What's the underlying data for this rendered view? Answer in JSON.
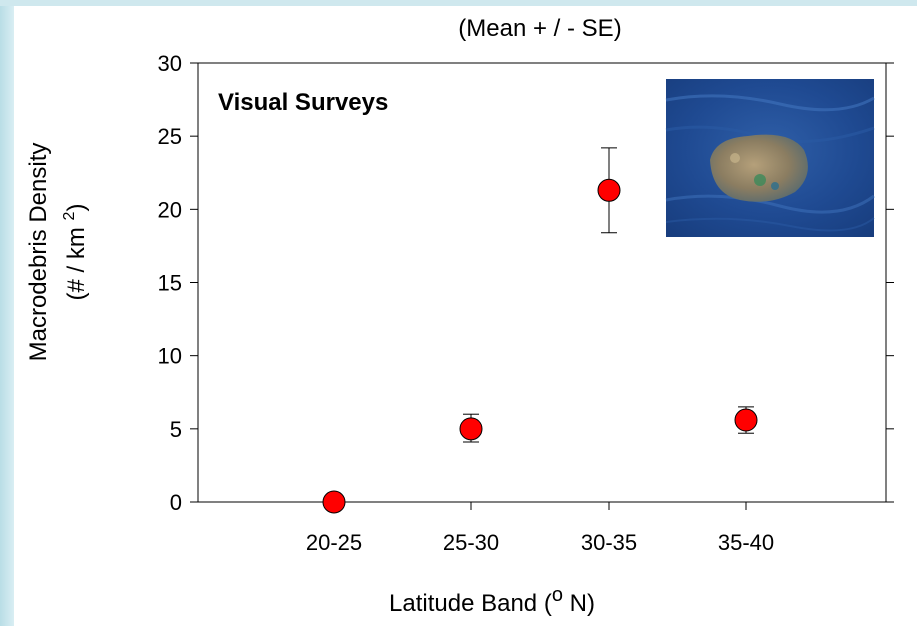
{
  "caption": "(Mean + / - SE)",
  "panel_label": "Visual Surveys",
  "photo_name": "floating-debris-photo",
  "colors": {
    "marker_fill": "#ff0000",
    "marker_stroke": "#000000",
    "axis": "#000000"
  },
  "chart_data": {
    "type": "scatter",
    "categories": [
      "20-25",
      "25-30",
      "30-35",
      "35-40"
    ],
    "values": [
      0,
      5.0,
      21.3,
      5.6
    ],
    "error_low": [
      0,
      4.1,
      18.4,
      4.7
    ],
    "error_high": [
      0,
      6.0,
      24.2,
      6.5
    ],
    "xlabel_main": "Latitude Band (",
    "xlabel_sup": "o",
    "xlabel_tail": " N)",
    "ylabel_line1": "Macrodebris Density",
    "ylabel_line2_main": "(# / km ",
    "ylabel_line2_sup": "2",
    "ylabel_line2_tail": ")",
    "ylim": [
      0,
      30
    ],
    "yticks": [
      0,
      5,
      10,
      15,
      20,
      25,
      30
    ],
    "grid": false
  }
}
